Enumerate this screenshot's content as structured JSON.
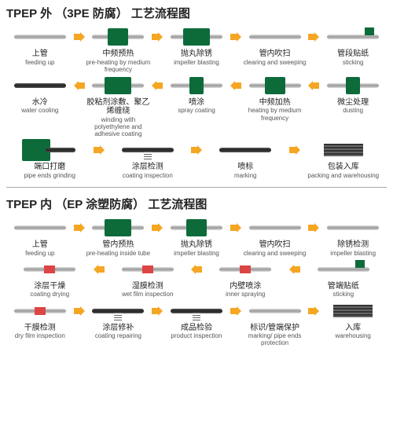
{
  "arrow_color": "#f5a623",
  "accent_color": "#0d6b3a",
  "diagrams": [
    {
      "title": "TPEP 外 （3PE 防腐） 工艺流程图",
      "rows": [
        {
          "dir": "right",
          "steps": [
            {
              "cn": "上管",
              "en": "feeding up",
              "t": "pipe"
            },
            {
              "cn": "中频预热",
              "en": "pre-heating by medium frequency",
              "t": "box"
            },
            {
              "cn": "抛丸除锈",
              "en": "impeller blasting",
              "t": "boxlg"
            },
            {
              "cn": "管内吹扫",
              "en": "clearing and sweeping",
              "t": "pipe"
            },
            {
              "cn": "管段贴纸",
              "en": "sticking",
              "t": "tag"
            }
          ]
        },
        {
          "dir": "left",
          "steps": [
            {
              "cn": "水冷",
              "en": "water cooling",
              "t": "dark"
            },
            {
              "cn": "胶粘剂涂敷、聚乙烯缠绕",
              "en": "winding with polyethylene and adhesive coating",
              "t": "boxlg"
            },
            {
              "cn": "喷涂",
              "en": "spray coating",
              "t": "boxsm"
            },
            {
              "cn": "中频加热",
              "en": "heating by medium frequency",
              "t": "box"
            },
            {
              "cn": "微尘处理",
              "en": "dusting",
              "t": "boxsm"
            }
          ]
        },
        {
          "dir": "right",
          "steps": [
            {
              "cn": "端口打磨",
              "en": "pipe ends grinding",
              "t": "mach"
            },
            {
              "cn": "涂层检测",
              "en": "coating inspection",
              "t": "spring"
            },
            {
              "cn": "喷标",
              "en": "marking",
              "t": "dark"
            },
            {
              "cn": "包装入库",
              "en": "packing and warehousing",
              "t": "stack"
            }
          ]
        }
      ]
    },
    {
      "title": "TPEP 内 （EP 涂塑防腐） 工艺流程图",
      "rows": [
        {
          "dir": "right",
          "steps": [
            {
              "cn": "上管",
              "en": "feeding up",
              "t": "pipe"
            },
            {
              "cn": "管内预热",
              "en": "pre-heating inside tube",
              "t": "boxlg"
            },
            {
              "cn": "抛丸除锈",
              "en": "impeller blasting",
              "t": "box"
            },
            {
              "cn": "管内吹扫",
              "en": "clearing and sweeping",
              "t": "pipe"
            },
            {
              "cn": "除锈检测",
              "en": "impeller blasting",
              "t": "pipe"
            }
          ]
        },
        {
          "dir": "left",
          "steps": [
            {
              "cn": "涂层干燥",
              "en": "coating drying",
              "t": "red"
            },
            {
              "cn": "湿膜检测",
              "en": "wet film inspection",
              "t": "red"
            },
            {
              "cn": "内壁喷涂",
              "en": "inner spraying",
              "t": "patch"
            },
            {
              "cn": "管端贴纸",
              "en": "sticking",
              "t": "tag"
            }
          ]
        },
        {
          "dir": "right",
          "steps": [
            {
              "cn": "干膜检测",
              "en": "dry film inspection",
              "t": "red"
            },
            {
              "cn": "涂层修补",
              "en": "coating repairing",
              "t": "spring"
            },
            {
              "cn": "成品检验",
              "en": "product inspection",
              "t": "spring"
            },
            {
              "cn": "标识/管端保护",
              "en": "marking/ pipe ends protection",
              "t": "pipe"
            },
            {
              "cn": "入库",
              "en": "warehousing",
              "t": "stack"
            }
          ]
        }
      ]
    }
  ]
}
